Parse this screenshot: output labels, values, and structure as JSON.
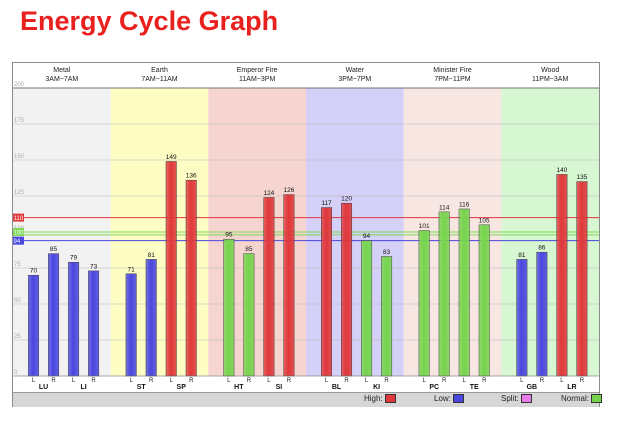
{
  "page": {
    "title": "Energy Cycle Graph"
  },
  "chart_data": {
    "type": "bar",
    "ylim": [
      0,
      200
    ],
    "y_ticks": [
      0,
      25,
      50,
      75,
      100,
      125,
      150,
      175,
      200
    ],
    "elements": [
      {
        "name": "Metal",
        "time": "3AM~7AM",
        "color": "#f2f2f2",
        "meridians": [
          {
            "label": "LU",
            "values": [
              70,
              85
            ],
            "status": [
              "low",
              "low"
            ]
          },
          {
            "label": "LI",
            "values": [
              79,
              73
            ],
            "status": [
              "low",
              "low"
            ]
          }
        ]
      },
      {
        "name": "Earth",
        "time": "7AM~11AM",
        "color": "#fdfdc4",
        "meridians": [
          {
            "label": "ST",
            "values": [
              71,
              81
            ],
            "status": [
              "low",
              "low"
            ]
          },
          {
            "label": "SP",
            "values": [
              149,
              136
            ],
            "status": [
              "high",
              "high"
            ]
          }
        ]
      },
      {
        "name": "Emperor Fire",
        "time": "11AM~3PM",
        "color": "#f6d5d0",
        "meridians": [
          {
            "label": "HT",
            "values": [
              95,
              85
            ],
            "status": [
              "normal",
              "normal"
            ]
          },
          {
            "label": "SI",
            "values": [
              124,
              126
            ],
            "status": [
              "high",
              "high"
            ]
          }
        ]
      },
      {
        "name": "Water",
        "time": "3PM~7PM",
        "color": "#d4d0f8",
        "meridians": [
          {
            "label": "BL",
            "values": [
              117,
              120
            ],
            "status": [
              "high",
              "high"
            ]
          },
          {
            "label": "KI",
            "values": [
              94,
              83
            ],
            "status": [
              "normal",
              "normal"
            ]
          }
        ]
      },
      {
        "name": "Minister Fire",
        "time": "7PM~11PM",
        "color": "#f7e6e2",
        "meridians": [
          {
            "label": "PC",
            "values": [
              101,
              114
            ],
            "status": [
              "normal",
              "normal"
            ]
          },
          {
            "label": "TE",
            "values": [
              116,
              105
            ],
            "status": [
              "normal",
              "normal"
            ]
          }
        ]
      },
      {
        "name": "Wood",
        "time": "11PM~3AM",
        "color": "#d7f6d2",
        "meridians": [
          {
            "label": "GB",
            "values": [
              81,
              86
            ],
            "status": [
              "low",
              "low"
            ]
          },
          {
            "label": "LR",
            "values": [
              140,
              135
            ],
            "status": [
              "high",
              "high"
            ]
          }
        ]
      }
    ],
    "side_labels": [
      "L",
      "R"
    ],
    "reference_lines": [
      {
        "value": 110,
        "label": "110",
        "color": "#e0373a"
      },
      {
        "value": 100,
        "label": "100",
        "color": "#7ed957"
      },
      {
        "value": 98,
        "label": "",
        "color": "#7ed957"
      },
      {
        "value": 94,
        "label": "94",
        "color": "#4a46e0"
      }
    ],
    "legend": [
      {
        "label": "High:",
        "color": "#e0373a"
      },
      {
        "label": "Low:",
        "color": "#4a46e0"
      },
      {
        "label": "Split:",
        "color": "#e879e8"
      },
      {
        "label": "Normal:",
        "color": "#76d44c"
      }
    ],
    "status_colors": {
      "high": "#e0373a",
      "low": "#4a46e0",
      "normal": "#76d44c"
    }
  }
}
